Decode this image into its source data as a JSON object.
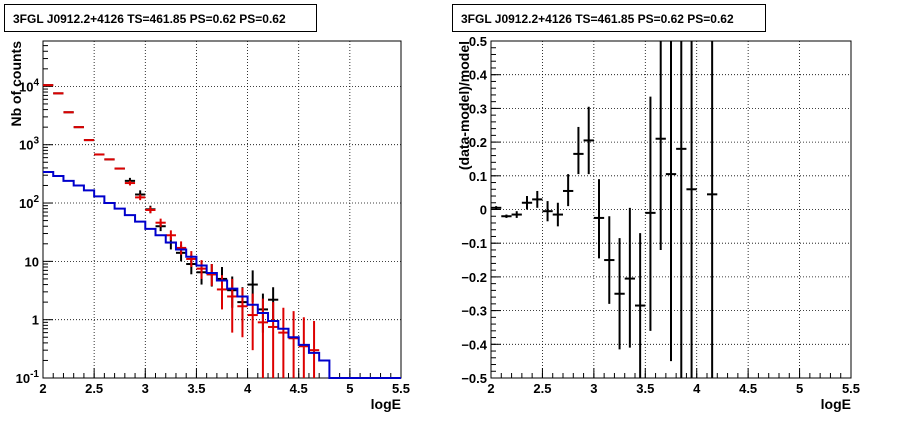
{
  "chart_data": [
    {
      "type": "line",
      "title": "3FGL J0912.2+4126 TS=461.85 PS=0.62 PS=0.62",
      "xlabel": "logE",
      "ylabel": "Nb of counts",
      "xlim": [
        2,
        5.5
      ],
      "ylim": [
        0.1,
        60000
      ],
      "yscale": "log",
      "grid": true,
      "xticks": [
        "2",
        "2.5",
        "3",
        "3.5",
        "4",
        "4.5",
        "5",
        "5.5"
      ],
      "yticks": [
        {
          "value": 0.1,
          "label": "10^-1"
        },
        {
          "value": 1,
          "label": "1"
        },
        {
          "value": 10,
          "label": "10"
        },
        {
          "value": 100,
          "label": "10^2"
        },
        {
          "value": 1000,
          "label": "10^3"
        },
        {
          "value": 10000,
          "label": "10^4"
        }
      ],
      "bin_width": 0.1,
      "series": [
        {
          "color": "#000000",
          "kind": "errorbar",
          "points": [
            {
              "x": 2.05,
              "y": 10500
            },
            {
              "x": 2.15,
              "y": 7600
            },
            {
              "x": 2.25,
              "y": 3600
            },
            {
              "x": 2.35,
              "y": 2000
            },
            {
              "x": 2.45,
              "y": 1200
            },
            {
              "x": 2.55,
              "y": 680
            },
            {
              "x": 2.65,
              "y": 560
            },
            {
              "x": 2.75,
              "y": 390
            },
            {
              "x": 2.85,
              "y": 240,
              "lo": 210,
              "hi": 270
            },
            {
              "x": 2.95,
              "y": 140,
              "lo": 120,
              "hi": 165
            },
            {
              "x": 3.05,
              "y": 78,
              "lo": 67,
              "hi": 90
            },
            {
              "x": 3.15,
              "y": 40,
              "lo": 33,
              "hi": 48
            },
            {
              "x": 3.25,
              "y": 21,
              "lo": 16,
              "hi": 26
            },
            {
              "x": 3.35,
              "y": 14,
              "lo": 10,
              "hi": 19
            },
            {
              "x": 3.45,
              "y": 9,
              "lo": 6,
              "hi": 13
            },
            {
              "x": 3.55,
              "y": 6.5,
              "lo": 4,
              "hi": 10
            },
            {
              "x": 3.65,
              "y": 6,
              "lo": 3.7,
              "hi": 9
            },
            {
              "x": 3.75,
              "y": 5,
              "lo": 3,
              "hi": 8
            },
            {
              "x": 3.85,
              "y": 3.2,
              "lo": 1.6,
              "hi": 5.5
            },
            {
              "x": 3.95,
              "y": 2,
              "lo": 0.9,
              "hi": 3.6
            },
            {
              "x": 4.05,
              "y": 4,
              "lo": 2,
              "hi": 7
            },
            {
              "x": 4.15,
              "y": 1.5,
              "lo": 0.6,
              "hi": 2.8
            },
            {
              "x": 4.25,
              "y": 2.2,
              "lo": 1,
              "hi": 3.6
            }
          ]
        },
        {
          "color": "#dd0000",
          "kind": "errorbar",
          "points": [
            {
              "x": 2.05,
              "y": 10500
            },
            {
              "x": 2.15,
              "y": 7600
            },
            {
              "x": 2.25,
              "y": 3600
            },
            {
              "x": 2.35,
              "y": 2000
            },
            {
              "x": 2.45,
              "y": 1200
            },
            {
              "x": 2.55,
              "y": 680
            },
            {
              "x": 2.65,
              "y": 560
            },
            {
              "x": 2.75,
              "y": 390
            },
            {
              "x": 2.85,
              "y": 220,
              "lo": 200,
              "hi": 240
            },
            {
              "x": 2.95,
              "y": 125,
              "lo": 112,
              "hi": 140
            },
            {
              "x": 3.05,
              "y": 76,
              "lo": 67,
              "hi": 86
            },
            {
              "x": 3.15,
              "y": 46,
              "lo": 39,
              "hi": 54
            },
            {
              "x": 3.25,
              "y": 28,
              "lo": 23,
              "hi": 34
            },
            {
              "x": 3.35,
              "y": 17,
              "lo": 13,
              "hi": 22
            },
            {
              "x": 3.45,
              "y": 11,
              "lo": 8,
              "hi": 15
            },
            {
              "x": 3.55,
              "y": 7.5,
              "lo": 5,
              "hi": 10.5
            },
            {
              "x": 3.65,
              "y": 6,
              "lo": 3.8,
              "hi": 9
            },
            {
              "x": 3.75,
              "y": 3.3,
              "lo": 1.5,
              "hi": 5.8
            },
            {
              "x": 3.85,
              "y": 2.5,
              "lo": 0.6,
              "hi": 5
            },
            {
              "x": 3.95,
              "y": 1.7,
              "lo": 0.5,
              "hi": 3.5
            },
            {
              "x": 4.05,
              "y": 1.2,
              "lo": 0.3,
              "hi": 2.8
            },
            {
              "x": 4.15,
              "y": 0.9,
              "lo": 0.1,
              "hi": 2.3
            },
            {
              "x": 4.25,
              "y": 0.75,
              "lo": 0.1,
              "hi": 2
            },
            {
              "x": 4.35,
              "y": 0.6,
              "lo": 0.1,
              "hi": 1.6
            },
            {
              "x": 4.45,
              "y": 0.48,
              "lo": 0.1,
              "hi": 1.4
            },
            {
              "x": 4.55,
              "y": 0.35,
              "lo": 0.1,
              "hi": 1.1
            },
            {
              "x": 4.65,
              "y": 0.3,
              "lo": 0.1,
              "hi": 0.95
            }
          ]
        },
        {
          "color": "#0000cc",
          "kind": "step",
          "edges": [
            2.0,
            2.1,
            2.2,
            2.3,
            2.4,
            2.5,
            2.6,
            2.7,
            2.8,
            2.9,
            3.0,
            3.1,
            3.2,
            3.3,
            3.4,
            3.5,
            3.6,
            3.7,
            3.8,
            3.9,
            4.0,
            4.1,
            4.2,
            4.3,
            4.4,
            4.5,
            4.6,
            4.7,
            4.8,
            4.9,
            5.0,
            5.1,
            5.2,
            5.3,
            5.4,
            5.5
          ],
          "values": [
            340,
            290,
            240,
            200,
            165,
            130,
            100,
            80,
            62,
            48,
            36,
            28,
            21,
            16,
            12,
            8.5,
            6.3,
            4.7,
            3.4,
            2.5,
            1.8,
            1.3,
            0.95,
            0.7,
            0.5,
            0.37,
            0.27,
            0.2,
            0.1,
            0.1,
            0.1,
            0.1,
            0.1,
            0.1,
            0.1
          ]
        }
      ]
    },
    {
      "type": "scatter",
      "title": "3FGL J0912.2+4126 TS=461.85 PS=0.62 PS=0.62",
      "xlabel": "logE",
      "ylabel": "(data-model)/model",
      "xlim": [
        2,
        5.5
      ],
      "ylim": [
        -0.5,
        0.5
      ],
      "grid": true,
      "xticks": [
        "2",
        "2.5",
        "3",
        "3.5",
        "4",
        "4.5",
        "5",
        "5.5"
      ],
      "yticks": [
        "−0.5",
        "−0.4",
        "−0.3",
        "−0.2",
        "−0.1",
        "0",
        "0.1",
        "0.2",
        "0.3",
        "0.4",
        "0.5"
      ],
      "bin_width": 0.1,
      "series": [
        {
          "color": "#000000",
          "points": [
            {
              "x": 2.05,
              "y": 0.005,
              "lo": 0.0,
              "hi": 0.01
            },
            {
              "x": 2.15,
              "y": -0.02,
              "lo": -0.025,
              "hi": -0.015
            },
            {
              "x": 2.25,
              "y": -0.015,
              "lo": -0.025,
              "hi": -0.005
            },
            {
              "x": 2.35,
              "y": 0.02,
              "lo": 0.0,
              "hi": 0.04
            },
            {
              "x": 2.45,
              "y": 0.03,
              "lo": 0.005,
              "hi": 0.055
            },
            {
              "x": 2.55,
              "y": -0.005,
              "lo": -0.035,
              "hi": 0.025
            },
            {
              "x": 2.65,
              "y": -0.015,
              "lo": -0.05,
              "hi": 0.02
            },
            {
              "x": 2.75,
              "y": 0.055,
              "lo": 0.01,
              "hi": 0.105
            },
            {
              "x": 2.85,
              "y": 0.165,
              "lo": 0.105,
              "hi": 0.245
            },
            {
              "x": 2.95,
              "y": 0.205,
              "lo": 0.105,
              "hi": 0.305
            },
            {
              "x": 3.05,
              "y": -0.025,
              "lo": -0.145,
              "hi": 0.09
            },
            {
              "x": 3.15,
              "y": -0.15,
              "lo": -0.28,
              "hi": -0.02
            },
            {
              "x": 3.25,
              "y": -0.25,
              "lo": -0.415,
              "hi": -0.085
            },
            {
              "x": 3.35,
              "y": -0.205,
              "lo": -0.41,
              "hi": 0.005
            },
            {
              "x": 3.45,
              "y": -0.285,
              "lo": -0.5,
              "hi": -0.07
            },
            {
              "x": 3.55,
              "y": -0.01,
              "lo": -0.36,
              "hi": 0.335
            },
            {
              "x": 3.65,
              "y": 0.21,
              "lo": -0.12,
              "hi": 0.5
            },
            {
              "x": 3.75,
              "y": 0.105,
              "lo": -0.45,
              "hi": 0.5
            },
            {
              "x": 3.85,
              "y": 0.18,
              "lo": -0.5,
              "hi": 0.5
            },
            {
              "x": 3.95,
              "y": 0.06,
              "lo": -0.5,
              "hi": 0.5
            },
            {
              "x": 4.15,
              "y": 0.045,
              "lo": -0.5,
              "hi": 0.5
            }
          ]
        }
      ]
    }
  ]
}
